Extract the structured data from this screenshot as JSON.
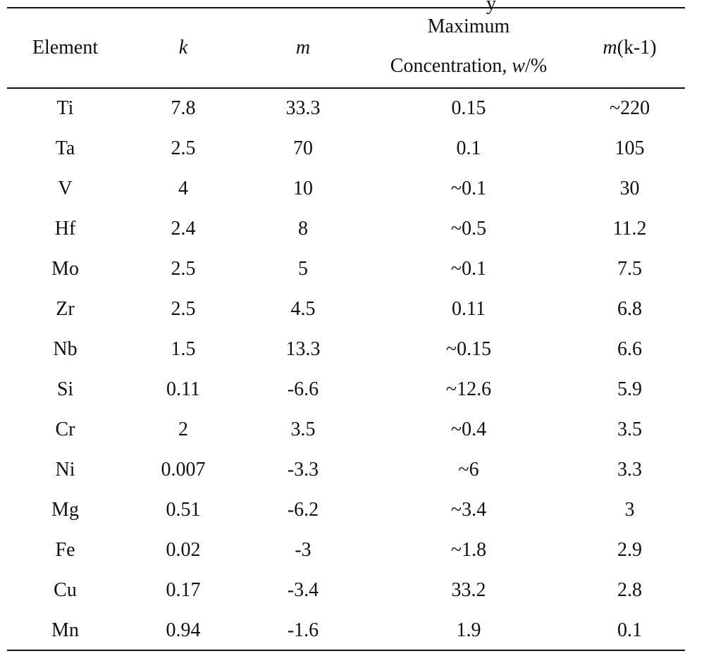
{
  "fragment_text": "y",
  "header": {
    "element": "Element",
    "k": "k",
    "m": "m",
    "max_conc_line1": "Maximum",
    "max_conc_line2_prefix": "Concentration, ",
    "max_conc_line2_w": "w",
    "max_conc_line2_suffix": "/%",
    "mk1_m": "m",
    "mk1_rest": "(k-1)"
  },
  "rows": [
    [
      "Ti",
      "7.8",
      "33.3",
      "0.15",
      "~220"
    ],
    [
      "Ta",
      "2.5",
      "70",
      "0.1",
      "105"
    ],
    [
      "V",
      "4",
      "10",
      "~0.1",
      "30"
    ],
    [
      "Hf",
      "2.4",
      "8",
      "~0.5",
      "11.2"
    ],
    [
      "Mo",
      "2.5",
      "5",
      "~0.1",
      "7.5"
    ],
    [
      "Zr",
      "2.5",
      "4.5",
      "0.11",
      "6.8"
    ],
    [
      "Nb",
      "1.5",
      "13.3",
      "~0.15",
      "6.6"
    ],
    [
      "Si",
      "0.11",
      "-6.6",
      "~12.6",
      "5.9"
    ],
    [
      "Cr",
      "2",
      "3.5",
      "~0.4",
      "3.5"
    ],
    [
      "Ni",
      "0.007",
      "-3.3",
      "~6",
      "3.3"
    ],
    [
      "Mg",
      "0.51",
      "-6.2",
      "~3.4",
      "3"
    ],
    [
      "Fe",
      "0.02",
      "-3",
      "~1.8",
      "2.9"
    ],
    [
      "Cu",
      "0.17",
      "-3.4",
      "33.2",
      "2.8"
    ],
    [
      "Mn",
      "0.94",
      "-1.6",
      "1.9",
      "0.1"
    ]
  ]
}
